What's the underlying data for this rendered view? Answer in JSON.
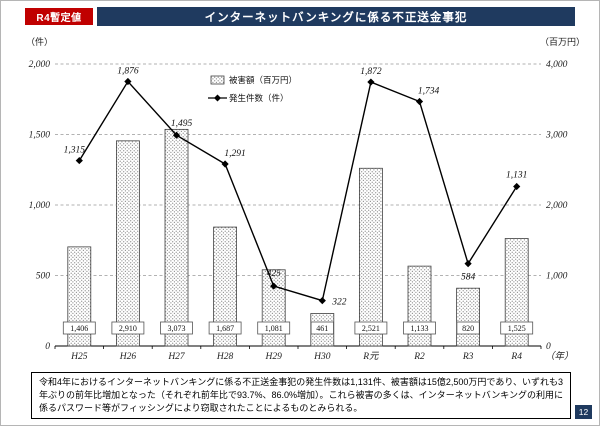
{
  "page": {
    "badge": "R4暫定値",
    "title": "インターネットバンキングに係る不正送金事犯",
    "footnote": "令和4年におけるインターネットバンキングに係る不正送金事犯の発生件数は1,131件、被害額は15億2,500万円であり、いずれも3年ぶりの前年比増加となった（それぞれ前年比で93.7%、86.0%増加）。これら被害の多くは、インターネットバンキングの利用に係るパスワード等がフィッシングにより窃取されたことによるものとみられる。",
    "page_number": "12"
  },
  "colors": {
    "badge_red": "#c00000",
    "title_navy": "#1f3a5f",
    "highlight_red": "#e60000"
  },
  "chart_data": {
    "type": "bar",
    "subtype": "bar+line combo",
    "categories": [
      "H25",
      "H26",
      "H27",
      "H28",
      "H29",
      "H30",
      "R元",
      "R2",
      "R3",
      "R4"
    ],
    "x_suffix": "（年）",
    "left_axis": {
      "label": "（件）",
      "min": 0,
      "max": 2000,
      "step": 500,
      "ticks": [
        "0",
        "500",
        "1,000",
        "1,500",
        "2,000"
      ]
    },
    "right_axis": {
      "label": "（百万円）",
      "min": 0,
      "max": 4000,
      "step": 1000,
      "ticks": [
        "0",
        "1,000",
        "2,000",
        "3,000",
        "4,000"
      ]
    },
    "series": [
      {
        "name": "被害額（百万円）",
        "type": "bar",
        "axis": "right",
        "values": [
          1406,
          2910,
          3073,
          1687,
          1081,
          461,
          2521,
          1133,
          820,
          1525
        ],
        "labels": [
          "1,406",
          "2,910",
          "3,073",
          "1,687",
          "1,081",
          "461",
          "2,521",
          "1,133",
          "820",
          "1,525"
        ]
      },
      {
        "name": "発生件数（件）",
        "type": "line",
        "axis": "left",
        "values": [
          1315,
          1876,
          1495,
          1291,
          425,
          322,
          1872,
          1734,
          584,
          1131
        ],
        "labels": [
          "1,315",
          "1,876",
          "1,495",
          "1,291",
          "425",
          "322",
          "1,872",
          "1,734",
          "584",
          "1,131"
        ]
      }
    ],
    "legend": [
      "被害額（百万円）",
      "発生件数（件）"
    ],
    "legend_position": "inside-top-left",
    "grid": "horizontal-dashed",
    "highlight_last_color": "#e60000"
  }
}
